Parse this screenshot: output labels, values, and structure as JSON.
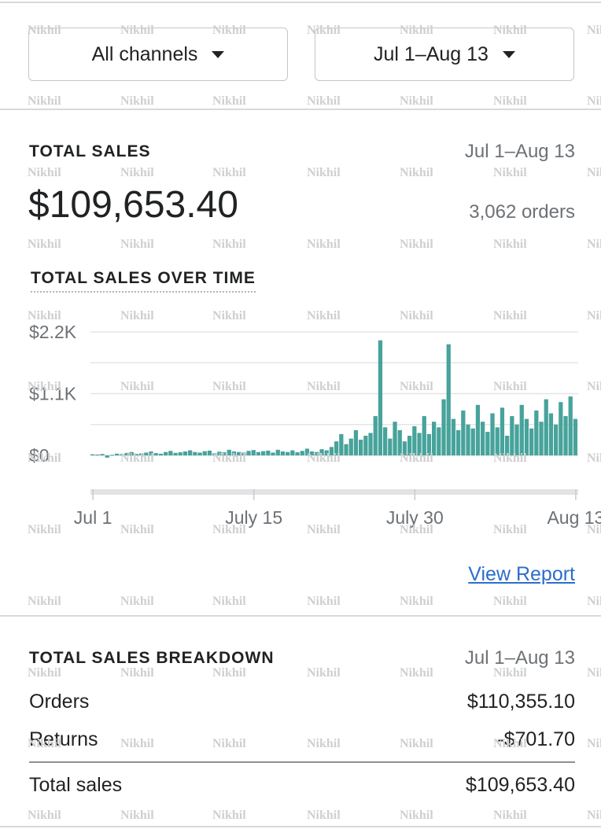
{
  "watermark": "Nikhil",
  "filters": {
    "channel": "All channels",
    "date_range": "Jul 1–Aug 13"
  },
  "total_sales": {
    "title": "TOTAL SALES",
    "date_range": "Jul 1–Aug 13",
    "amount": "$109,653.40",
    "orders": "3,062 orders"
  },
  "chart_data": {
    "type": "bar",
    "title": "TOTAL SALES OVER TIME",
    "color": "#47a39b",
    "grid": true,
    "ylim": [
      0,
      2200
    ],
    "yticks": [
      {
        "value": 0,
        "label": "$0"
      },
      {
        "value": 550,
        "label": null
      },
      {
        "value": 1100,
        "label": "$1.1K"
      },
      {
        "value": 1650,
        "label": null
      },
      {
        "value": 2200,
        "label": "$2.2K"
      }
    ],
    "categories": [
      "Jul 1",
      null,
      null,
      null,
      null,
      null,
      null,
      null,
      null,
      null,
      null,
      null,
      null,
      null,
      null,
      null,
      null,
      null,
      null,
      null,
      null,
      null,
      null,
      null,
      null,
      null,
      null,
      null,
      null,
      null,
      null,
      null,
      null,
      "July 15",
      null,
      null,
      null,
      null,
      null,
      null,
      null,
      null,
      null,
      null,
      null,
      null,
      null,
      null,
      null,
      null,
      null,
      null,
      null,
      null,
      null,
      null,
      null,
      null,
      null,
      null,
      null,
      null,
      null,
      null,
      null,
      null,
      "July 30",
      null,
      null,
      null,
      null,
      null,
      null,
      null,
      null,
      null,
      null,
      null,
      null,
      null,
      null,
      null,
      null,
      null,
      null,
      null,
      null,
      null,
      null,
      null,
      null,
      null,
      null,
      null,
      null,
      null,
      null,
      null,
      null,
      "Aug 13"
    ],
    "values": [
      20,
      15,
      25,
      -40,
      10,
      30,
      20,
      45,
      60,
      25,
      35,
      50,
      70,
      40,
      30,
      60,
      80,
      45,
      55,
      70,
      90,
      60,
      50,
      75,
      85,
      40,
      65,
      55,
      100,
      70,
      60,
      50,
      80,
      95,
      60,
      75,
      85,
      50,
      100,
      70,
      60,
      90,
      55,
      80,
      120,
      70,
      60,
      110,
      90,
      150,
      250,
      380,
      200,
      300,
      450,
      280,
      350,
      400,
      700,
      2050,
      500,
      300,
      600,
      450,
      250,
      350,
      520,
      400,
      700,
      380,
      600,
      500,
      1000,
      1980,
      650,
      450,
      800,
      550,
      480,
      900,
      600,
      420,
      750,
      500,
      850,
      350,
      700,
      550,
      900,
      650,
      480,
      800,
      600,
      1000,
      750,
      550,
      950,
      700,
      1050,
      650
    ]
  },
  "view_report": "View Report",
  "breakdown": {
    "title": "TOTAL SALES BREAKDOWN",
    "date_range": "Jul 1–Aug 13",
    "rows": [
      [
        "Orders",
        "$110,355.10"
      ],
      [
        "Returns",
        "-$701.70"
      ],
      [
        "Total sales",
        "$109,653.40"
      ]
    ]
  }
}
